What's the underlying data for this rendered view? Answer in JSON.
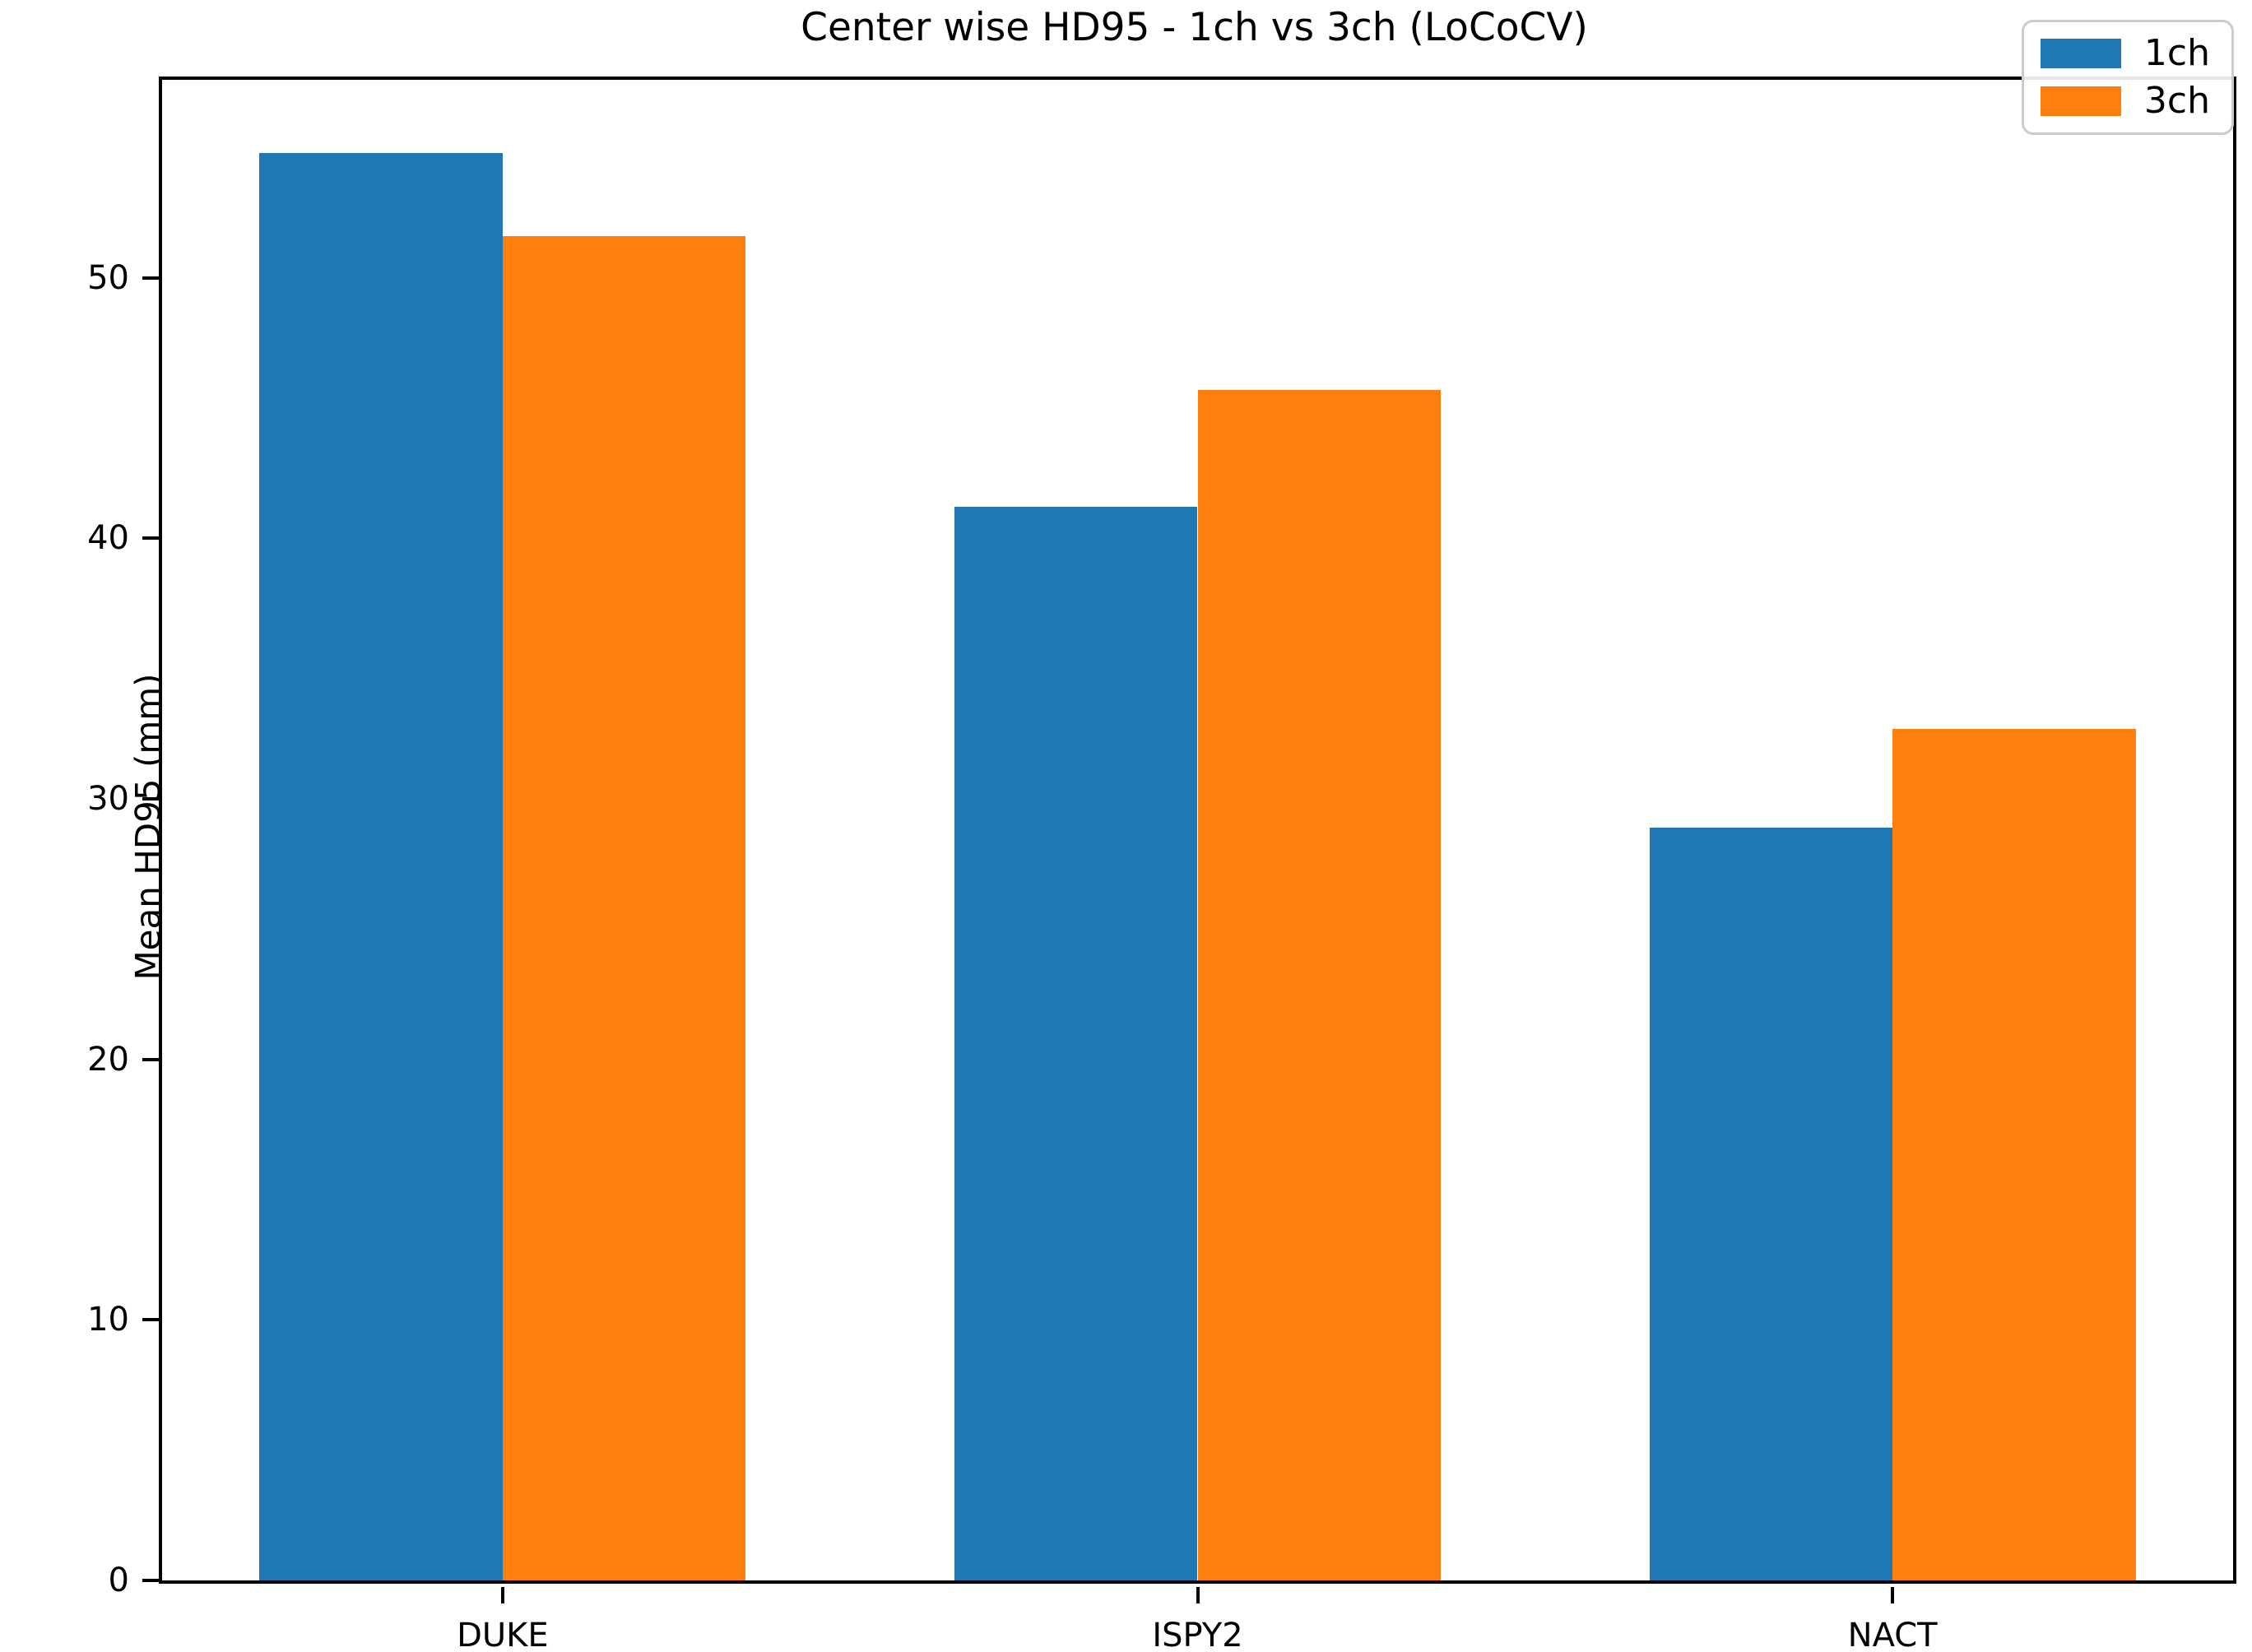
{
  "chart_data": {
    "type": "bar",
    "title": "Center wise HD95 - 1ch vs 3ch (LoCoCV)",
    "xlabel": "",
    "ylabel": "Mean HD95 (mm)",
    "categories": [
      "DUKE",
      "ISPY2",
      "NACT"
    ],
    "series": [
      {
        "name": "1ch",
        "color": "#1f77b4",
        "values": [
          54.8,
          41.2,
          28.9
        ]
      },
      {
        "name": "3ch",
        "color": "#ff7f0e",
        "values": [
          51.6,
          45.7,
          32.7
        ]
      }
    ],
    "ylim": [
      0,
      57.6
    ],
    "yticks": [
      0,
      10,
      20,
      30,
      40,
      50
    ],
    "xlim": [
      -0.49,
      2.49
    ],
    "bar_width_fraction": 0.35,
    "grid": false,
    "legend_position": "upper right",
    "background_color": "#ffffff",
    "text_color": "#000000"
  }
}
